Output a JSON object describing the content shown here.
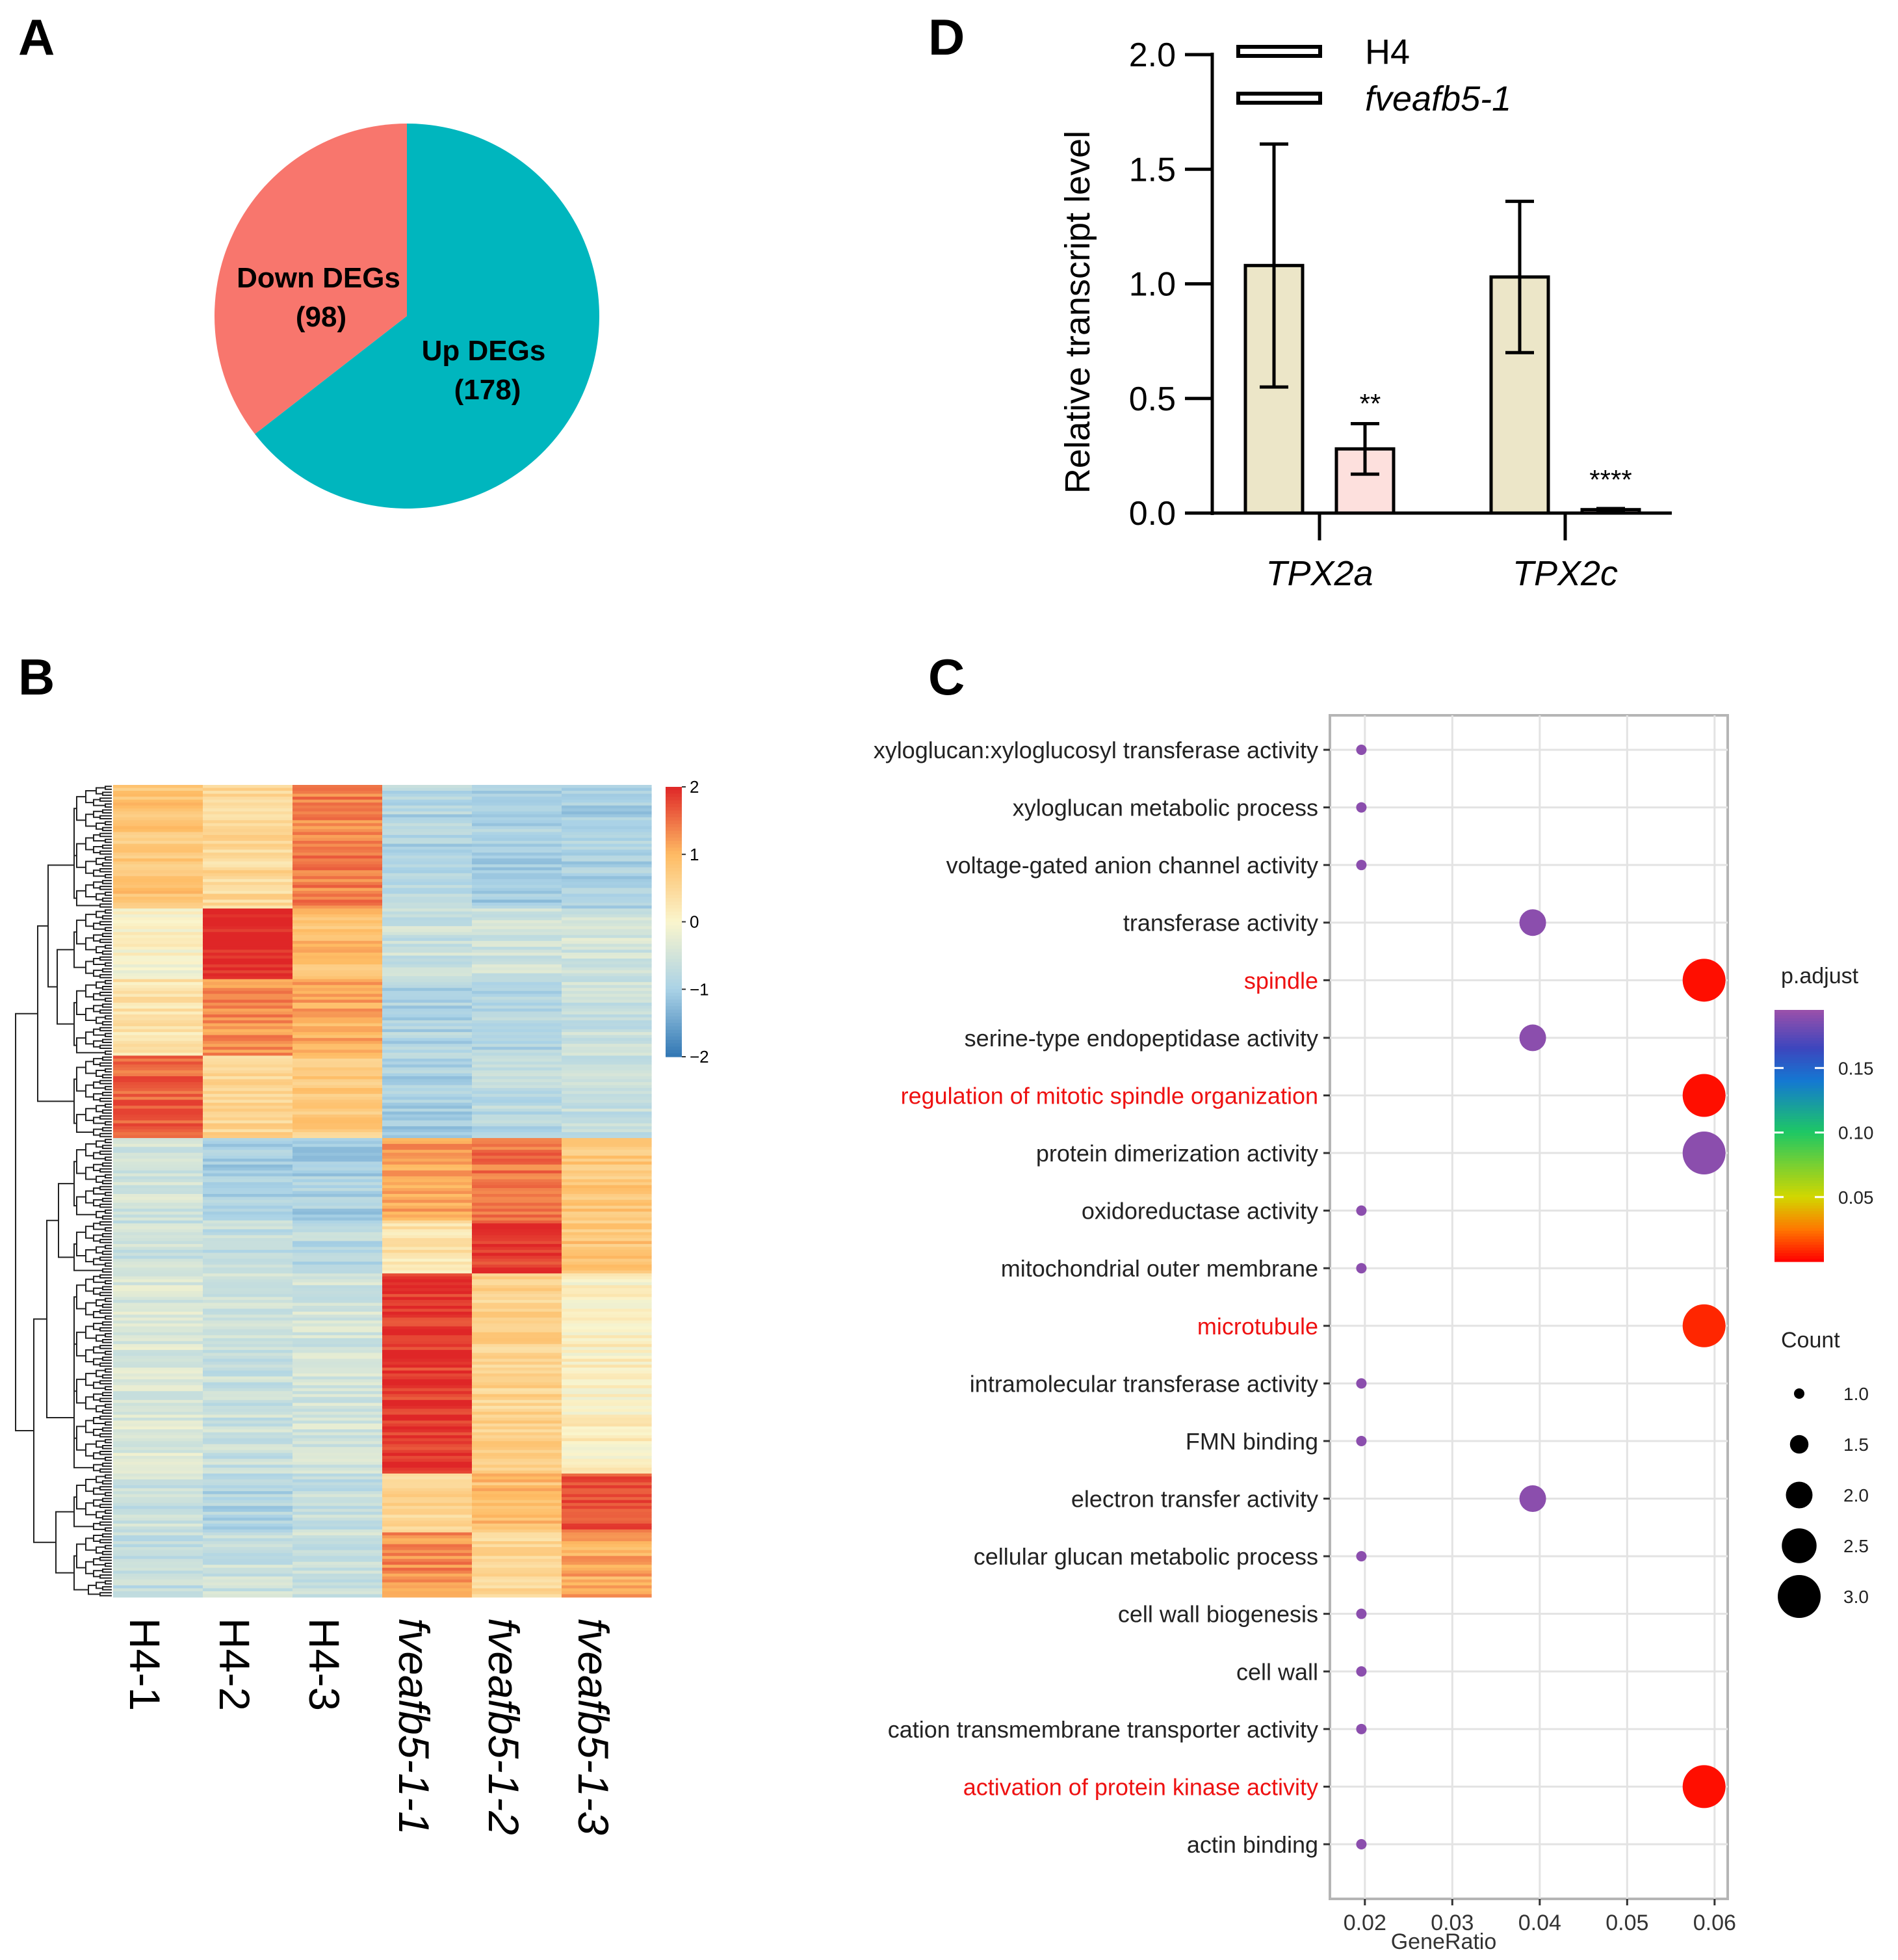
{
  "panels": {
    "A": {
      "letter": "A",
      "chart_data": {
        "type": "pie",
        "slices": [
          {
            "label": "Down DEGs",
            "count_label": "(98)",
            "value": 98,
            "color": "#f8766d"
          },
          {
            "label": "Up DEGs",
            "count_label": "(178)",
            "value": 178,
            "color": "#00b6be"
          }
        ]
      }
    },
    "B": {
      "letter": "B",
      "chart_data": {
        "type": "heatmap",
        "columns": [
          "H4-1",
          "H4-2",
          "H4-3",
          "fveafb5-1-1",
          "fveafb5-1-2",
          "fveafb5-1-3"
        ],
        "italic_columns": [
          false,
          false,
          false,
          true,
          true,
          true
        ],
        "n_genes": 276,
        "colorbar_ticks": [
          "2",
          "1",
          "0",
          "−1",
          "−2"
        ],
        "colorbar_range": [
          -2,
          2
        ],
        "blocks": [
          {
            "rows": 42,
            "means": [
              0.8,
              0.5,
              1.4,
              -0.9,
              -1.0,
              -1.0
            ]
          },
          {
            "rows": 24,
            "means": [
              0.0,
              2.0,
              0.9,
              -0.6,
              -0.5,
              -0.5
            ]
          },
          {
            "rows": 26,
            "means": [
              0.3,
              1.3,
              1.1,
              -0.9,
              -0.9,
              -0.6
            ]
          },
          {
            "rows": 28,
            "means": [
              1.6,
              0.6,
              0.7,
              -1.0,
              -0.8,
              -0.7
            ]
          },
          {
            "rows": 28,
            "means": [
              -0.5,
              -1.0,
              -1.0,
              1.2,
              1.5,
              0.8
            ]
          },
          {
            "rows": 18,
            "means": [
              -0.6,
              -0.7,
              -0.8,
              0.3,
              1.9,
              0.8
            ]
          },
          {
            "rows": 68,
            "means": [
              -0.4,
              -0.6,
              -0.5,
              1.9,
              0.6,
              0.1
            ]
          },
          {
            "rows": 20,
            "means": [
              -0.6,
              -0.9,
              -0.7,
              0.6,
              0.9,
              1.7
            ]
          },
          {
            "rows": 22,
            "means": [
              -0.7,
              -0.6,
              -0.6,
              1.3,
              0.5,
              1.1
            ]
          }
        ]
      }
    },
    "C": {
      "letter": "C",
      "chart_data": {
        "type": "scatter",
        "xlabel": "GeneRatio",
        "xlim": [
          0.016,
          0.0615
        ],
        "xticks": [
          {
            "value": 0.02,
            "label": "0.02"
          },
          {
            "value": 0.03,
            "label": "0.03"
          },
          {
            "value": 0.04,
            "label": "0.04"
          },
          {
            "value": 0.05,
            "label": "0.05"
          },
          {
            "value": 0.06,
            "label": "0.06"
          }
        ],
        "terms": [
          {
            "label": "xyloglucan:xyloglucosyl transferase activity",
            "gene_ratio": 0.0196,
            "count": 1,
            "p_adjust": 0.19,
            "highlight": false
          },
          {
            "label": "xyloglucan metabolic process",
            "gene_ratio": 0.0196,
            "count": 1,
            "p_adjust": 0.19,
            "highlight": false
          },
          {
            "label": "voltage-gated anion channel activity",
            "gene_ratio": 0.0196,
            "count": 1,
            "p_adjust": 0.19,
            "highlight": false
          },
          {
            "label": "transferase activity",
            "gene_ratio": 0.0392,
            "count": 2,
            "p_adjust": 0.19,
            "highlight": false
          },
          {
            "label": "spindle",
            "gene_ratio": 0.0588,
            "count": 3,
            "p_adjust": 0.003,
            "highlight": true
          },
          {
            "label": "serine-type endopeptidase activity",
            "gene_ratio": 0.0392,
            "count": 2,
            "p_adjust": 0.19,
            "highlight": false
          },
          {
            "label": "regulation of mitotic spindle organization",
            "gene_ratio": 0.0588,
            "count": 3,
            "p_adjust": 0.003,
            "highlight": true
          },
          {
            "label": "protein dimerization activity",
            "gene_ratio": 0.0588,
            "count": 3,
            "p_adjust": 0.19,
            "highlight": false
          },
          {
            "label": "oxidoreductase activity",
            "gene_ratio": 0.0196,
            "count": 1,
            "p_adjust": 0.19,
            "highlight": false
          },
          {
            "label": "mitochondrial outer membrane",
            "gene_ratio": 0.0196,
            "count": 1,
            "p_adjust": 0.19,
            "highlight": false
          },
          {
            "label": "microtubule",
            "gene_ratio": 0.0588,
            "count": 3,
            "p_adjust": 0.008,
            "highlight": true
          },
          {
            "label": "intramolecular transferase activity",
            "gene_ratio": 0.0196,
            "count": 1,
            "p_adjust": 0.19,
            "highlight": false
          },
          {
            "label": "FMN binding",
            "gene_ratio": 0.0196,
            "count": 1,
            "p_adjust": 0.19,
            "highlight": false
          },
          {
            "label": "electron transfer activity",
            "gene_ratio": 0.0392,
            "count": 2,
            "p_adjust": 0.19,
            "highlight": false
          },
          {
            "label": "cellular glucan metabolic process",
            "gene_ratio": 0.0196,
            "count": 1,
            "p_adjust": 0.19,
            "highlight": false
          },
          {
            "label": "cell wall biogenesis",
            "gene_ratio": 0.0196,
            "count": 1,
            "p_adjust": 0.19,
            "highlight": false
          },
          {
            "label": "cell wall",
            "gene_ratio": 0.0196,
            "count": 1,
            "p_adjust": 0.19,
            "highlight": false
          },
          {
            "label": "cation transmembrane transporter activity",
            "gene_ratio": 0.0196,
            "count": 1,
            "p_adjust": 0.19,
            "highlight": false
          },
          {
            "label": "activation of protein kinase activity",
            "gene_ratio": 0.0588,
            "count": 3,
            "p_adjust": 0.003,
            "highlight": true
          },
          {
            "label": "actin binding",
            "gene_ratio": 0.0196,
            "count": 1,
            "p_adjust": 0.19,
            "highlight": false
          }
        ],
        "legend_padjust": {
          "title": "p.adjust",
          "range": [
            0.0,
            0.195
          ],
          "ticks": [
            {
              "value": 0.15,
              "label": "0.15"
            },
            {
              "value": 0.1,
              "label": "0.10"
            },
            {
              "value": 0.05,
              "label": "0.05"
            }
          ]
        },
        "legend_count": {
          "title": "Count",
          "items": [
            {
              "value": 1.0,
              "label": "1.0"
            },
            {
              "value": 1.5,
              "label": "1.5"
            },
            {
              "value": 2.0,
              "label": "2.0"
            },
            {
              "value": 2.5,
              "label": "2.5"
            },
            {
              "value": 3.0,
              "label": "3.0"
            }
          ]
        }
      }
    },
    "D": {
      "letter": "D",
      "chart_data": {
        "type": "bar",
        "ylabel": "Relative transcript level",
        "ylim": [
          0,
          2.0
        ],
        "yticks": [
          "0.0",
          "0.5",
          "1.0",
          "1.5",
          "2.0"
        ],
        "categories": [
          "TPX2a",
          "TPX2c"
        ],
        "series": [
          {
            "name": "H4",
            "italic": false,
            "color": "#ece6c8",
            "values": [
              1.08,
              1.03
            ],
            "errors": [
              0.53,
              0.33
            ]
          },
          {
            "name": "fveafb5-1",
            "italic": true,
            "color": "#fde0dd",
            "values": [
              0.28,
              0.015
            ],
            "errors": [
              0.11,
              0.005
            ]
          }
        ],
        "annotations": [
          {
            "category": "TPX2a",
            "series": "fveafb5-1",
            "text": "**"
          },
          {
            "category": "TPX2c",
            "series": "fveafb5-1",
            "text": "****"
          }
        ]
      }
    }
  }
}
